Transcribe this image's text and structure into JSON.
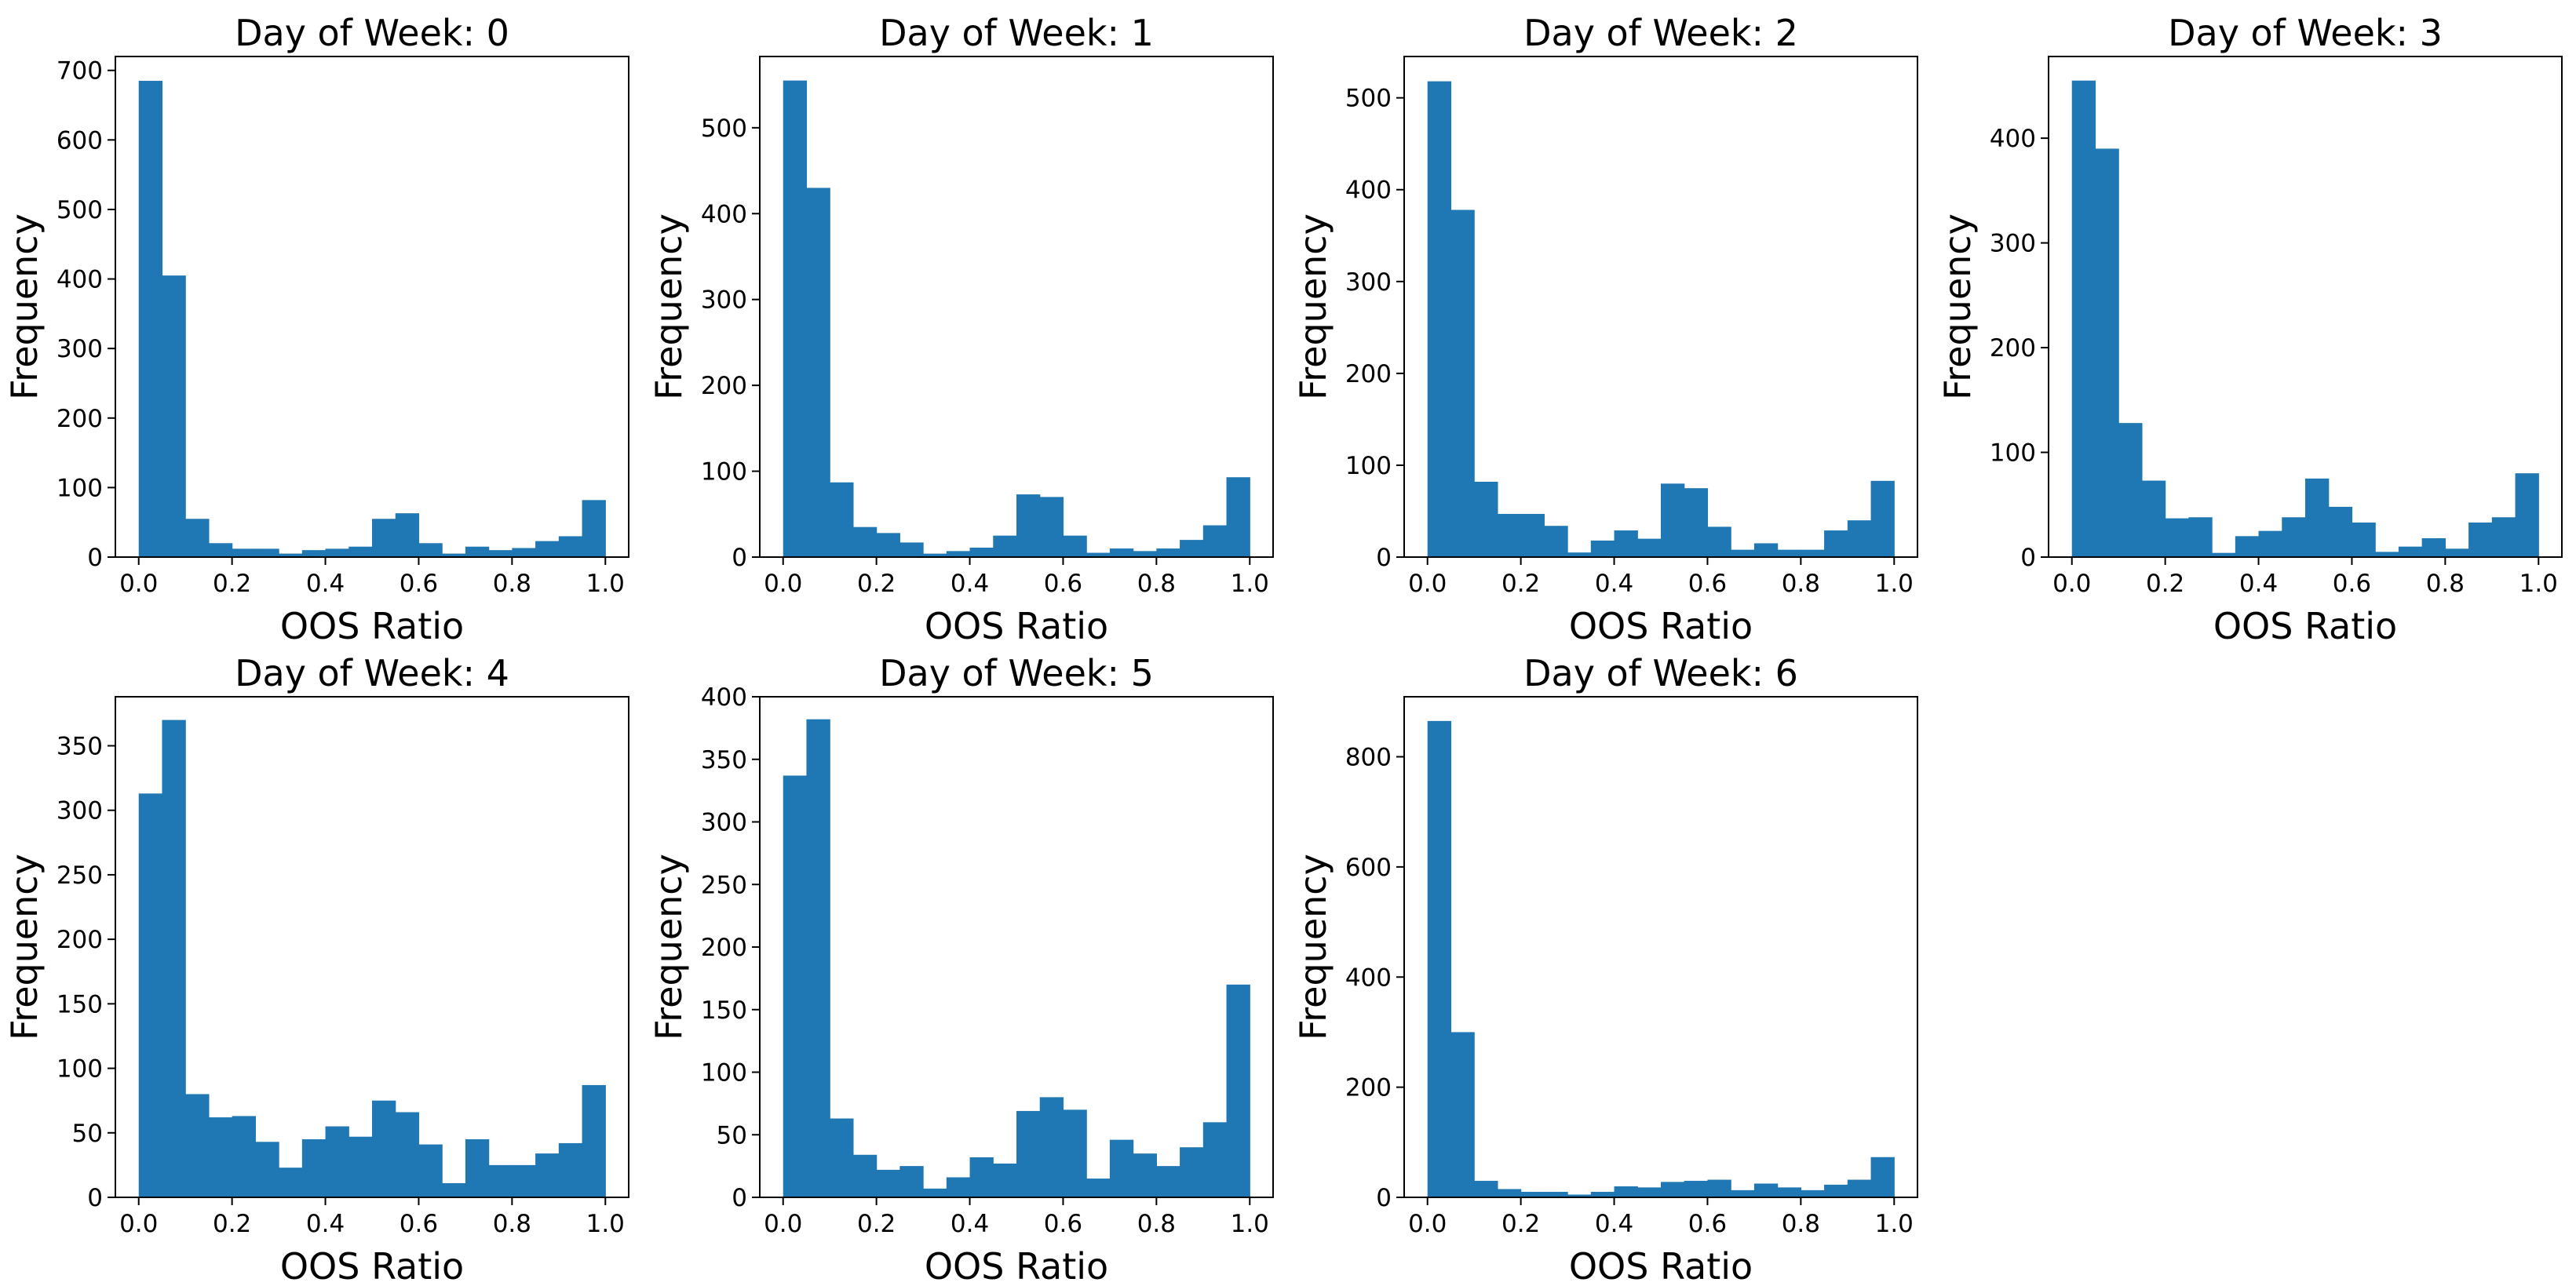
{
  "chart_data": [
    {
      "type": "bar",
      "title": "Day of Week: 0",
      "xlabel": "OOS Ratio",
      "ylabel": "Frequency",
      "bins": 20,
      "xlim": [
        -0.05,
        1.05
      ],
      "ylim": [
        0,
        720
      ],
      "xticks": [
        "0.0",
        "0.2",
        "0.4",
        "0.6",
        "0.8",
        "1.0"
      ],
      "yticks": [
        "0",
        "100",
        "200",
        "300",
        "400",
        "500",
        "600",
        "700"
      ],
      "values": [
        685,
        405,
        55,
        20,
        12,
        12,
        5,
        10,
        12,
        15,
        55,
        63,
        20,
        5,
        15,
        10,
        13,
        23,
        30,
        82
      ],
      "color": "#1f77b4"
    },
    {
      "type": "bar",
      "title": "Day of Week: 1",
      "xlabel": "OOS Ratio",
      "ylabel": "Frequency",
      "bins": 20,
      "xlim": [
        -0.05,
        1.05
      ],
      "ylim": [
        0,
        583
      ],
      "xticks": [
        "0.0",
        "0.2",
        "0.4",
        "0.6",
        "0.8",
        "1.0"
      ],
      "yticks": [
        "0",
        "100",
        "200",
        "300",
        "400",
        "500"
      ],
      "values": [
        555,
        430,
        87,
        35,
        28,
        17,
        4,
        7,
        11,
        25,
        73,
        70,
        25,
        5,
        10,
        7,
        10,
        20,
        37,
        93
      ],
      "color": "#1f77b4"
    },
    {
      "type": "bar",
      "title": "Day of Week: 2",
      "xlabel": "OOS Ratio",
      "ylabel": "Frequency",
      "bins": 20,
      "xlim": [
        -0.05,
        1.05
      ],
      "ylim": [
        0,
        545
      ],
      "xticks": [
        "0.0",
        "0.2",
        "0.4",
        "0.6",
        "0.8",
        "1.0"
      ],
      "yticks": [
        "0",
        "100",
        "200",
        "300",
        "400",
        "500"
      ],
      "values": [
        518,
        378,
        82,
        47,
        47,
        34,
        5,
        18,
        29,
        20,
        80,
        75,
        33,
        8,
        15,
        8,
        8,
        29,
        40,
        83
      ],
      "color": "#1f77b4"
    },
    {
      "type": "bar",
      "title": "Day of Week: 3",
      "xlabel": "OOS Ratio",
      "ylabel": "Frequency",
      "bins": 20,
      "xlim": [
        -0.05,
        1.05
      ],
      "ylim": [
        0,
        478
      ],
      "xticks": [
        "0.0",
        "0.2",
        "0.4",
        "0.6",
        "0.8",
        "1.0"
      ],
      "yticks": [
        "0",
        "100",
        "200",
        "300",
        "400"
      ],
      "values": [
        455,
        390,
        128,
        73,
        37,
        38,
        4,
        20,
        25,
        38,
        75,
        48,
        33,
        5,
        10,
        18,
        8,
        33,
        38,
        80
      ],
      "color": "#1f77b4"
    },
    {
      "type": "bar",
      "title": "Day of Week: 4",
      "xlabel": "OOS Ratio",
      "ylabel": "Frequency",
      "bins": 20,
      "xlim": [
        -0.05,
        1.05
      ],
      "ylim": [
        0,
        388
      ],
      "xticks": [
        "0.0",
        "0.2",
        "0.4",
        "0.6",
        "0.8",
        "1.0"
      ],
      "yticks": [
        "0",
        "50",
        "100",
        "150",
        "200",
        "250",
        "300",
        "350"
      ],
      "values": [
        313,
        370,
        80,
        62,
        63,
        43,
        23,
        45,
        55,
        47,
        75,
        66,
        41,
        11,
        45,
        25,
        25,
        34,
        42,
        87
      ],
      "color": "#1f77b4"
    },
    {
      "type": "bar",
      "title": "Day of Week: 5",
      "xlabel": "OOS Ratio",
      "ylabel": "Frequency",
      "bins": 20,
      "xlim": [
        -0.05,
        1.05
      ],
      "ylim": [
        0,
        400
      ],
      "xticks": [
        "0.0",
        "0.2",
        "0.4",
        "0.6",
        "0.8",
        "1.0"
      ],
      "yticks": [
        "0",
        "50",
        "100",
        "150",
        "200",
        "250",
        "300",
        "350",
        "400"
      ],
      "values": [
        337,
        382,
        63,
        34,
        22,
        25,
        7,
        16,
        32,
        27,
        69,
        80,
        70,
        15,
        46,
        35,
        25,
        40,
        60,
        170
      ],
      "color": "#1f77b4"
    },
    {
      "type": "bar",
      "title": "Day of Week: 6",
      "xlabel": "OOS Ratio",
      "ylabel": "Frequency",
      "bins": 20,
      "xlim": [
        -0.05,
        1.05
      ],
      "ylim": [
        0,
        909
      ],
      "xticks": [
        "0.0",
        "0.2",
        "0.4",
        "0.6",
        "0.8",
        "1.0"
      ],
      "yticks": [
        "0",
        "200",
        "400",
        "600",
        "800"
      ],
      "values": [
        865,
        300,
        30,
        15,
        10,
        10,
        5,
        10,
        20,
        18,
        28,
        30,
        32,
        13,
        25,
        18,
        13,
        23,
        32,
        73
      ],
      "color": "#1f77b4"
    }
  ]
}
